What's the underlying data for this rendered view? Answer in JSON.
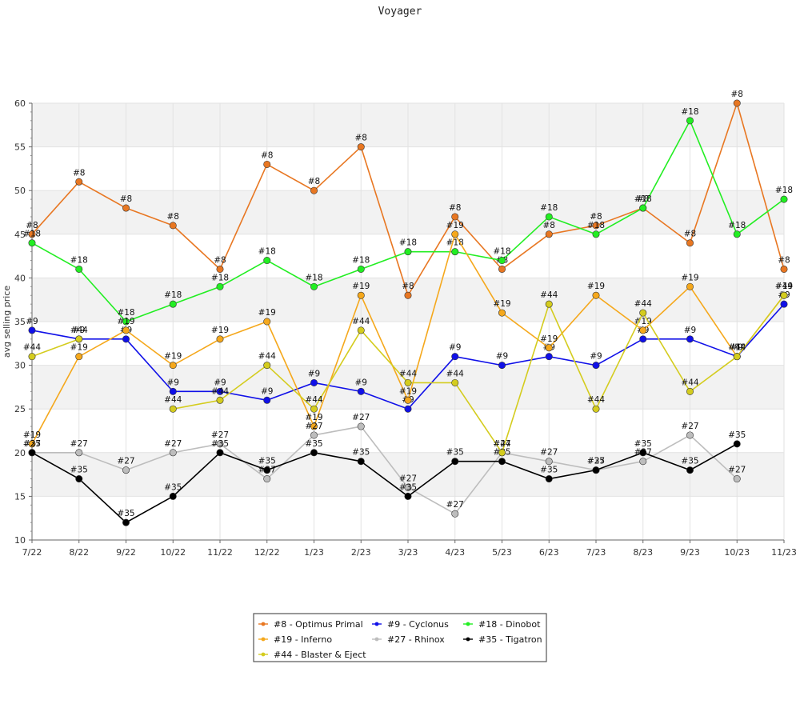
{
  "chart_data": {
    "type": "line",
    "title": "Voyager",
    "xlabel": "",
    "ylabel": "avg selling price",
    "ylim": [
      10,
      60
    ],
    "yticks": [
      10,
      15,
      20,
      25,
      30,
      35,
      40,
      45,
      50,
      55,
      60
    ],
    "grid": true,
    "legend_position": "bottom",
    "categories": [
      "7/22",
      "8/22",
      "9/22",
      "10/22",
      "11/22",
      "12/22",
      "1/23",
      "2/23",
      "3/23",
      "4/23",
      "5/23",
      "6/23",
      "7/23",
      "8/23",
      "9/23",
      "10/23",
      "11/23"
    ],
    "series": [
      {
        "name": "#8 - Optimus Primal",
        "label": "#8",
        "color": "#e87722",
        "values": [
          45,
          51,
          48,
          46,
          41,
          53,
          50,
          55,
          38,
          47,
          41,
          45,
          46,
          48,
          44,
          60,
          41
        ]
      },
      {
        "name": "#9 - Cyclonus",
        "label": "#9",
        "color": "#1010e8",
        "values": [
          34,
          33,
          33,
          27,
          27,
          26,
          28,
          27,
          25,
          31,
          30,
          31,
          30,
          33,
          33,
          31,
          37
        ]
      },
      {
        "name": "#18 - Dinobot",
        "label": "#18",
        "color": "#22ee22",
        "values": [
          44,
          41,
          35,
          37,
          39,
          42,
          39,
          41,
          43,
          43,
          42,
          47,
          45,
          48,
          58,
          45,
          49
        ]
      },
      {
        "name": "#19 - Inferno",
        "label": "#19",
        "color": "#f5a81c",
        "values": [
          21,
          31,
          34,
          30,
          33,
          35,
          23,
          38,
          26,
          45,
          36,
          32,
          38,
          34,
          39,
          31,
          38
        ]
      },
      {
        "name": "#27 - Rhinox",
        "label": "#27",
        "color": "#bdbdbd",
        "values": [
          20,
          20,
          18,
          20,
          21,
          17,
          22,
          23,
          16,
          13,
          20,
          19,
          18,
          19,
          22,
          17,
          null
        ]
      },
      {
        "name": "#35 - Tigatron",
        "label": "#35",
        "color": "#000000",
        "values": [
          20,
          17,
          12,
          15,
          20,
          18,
          20,
          19,
          15,
          19,
          19,
          17,
          18,
          20,
          18,
          21,
          null
        ]
      },
      {
        "name": "#44 - Blaster & Eject",
        "label": "#44",
        "color": "#d4cc1e",
        "values": [
          31,
          33,
          null,
          25,
          26,
          30,
          25,
          34,
          28,
          28,
          20,
          37,
          25,
          36,
          27,
          31,
          38
        ]
      }
    ]
  }
}
